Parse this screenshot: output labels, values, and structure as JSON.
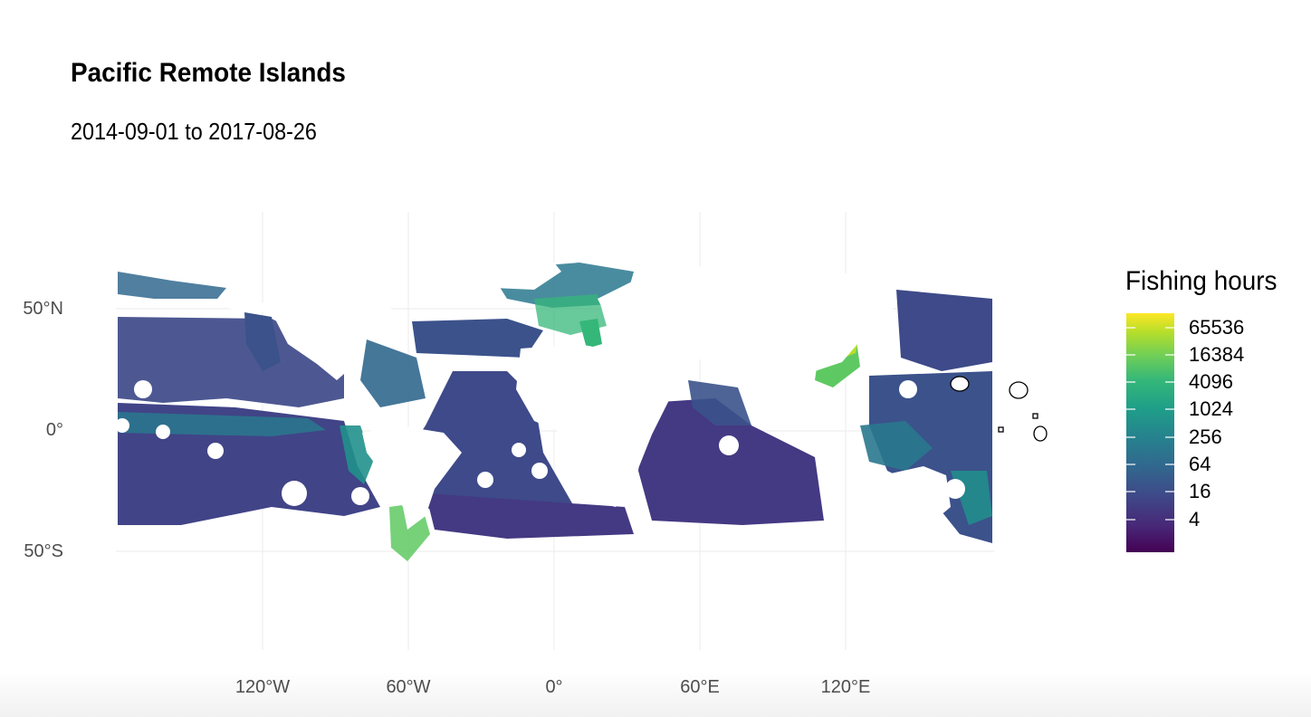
{
  "title": "Pacific Remote Islands",
  "subtitle": "2014-09-01 to 2017-08-26",
  "map": {
    "projection": "equirectangular",
    "y_axis_labels": [
      "50°N",
      "0°",
      "50°S"
    ],
    "x_axis_labels": [
      "120°W",
      "60°W",
      "0°",
      "60°E",
      "120°E"
    ],
    "gridlines": true
  },
  "legend": {
    "title": "Fishing hours",
    "scale": "log",
    "palette": "viridis",
    "labels": [
      "65536",
      "16384",
      "4096",
      "1024",
      "256",
      "64",
      "16",
      "4"
    ]
  },
  "colors": {
    "low": "#440154",
    "mid_low": "#3b528b",
    "mid": "#21918c",
    "mid_high": "#5ec962",
    "high": "#fde725",
    "grid": "#ebebeb"
  }
}
